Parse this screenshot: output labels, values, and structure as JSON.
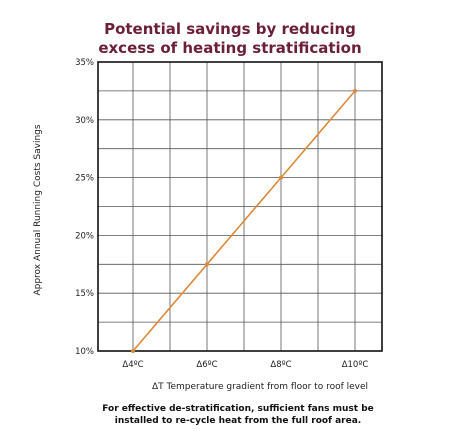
{
  "chart_data": {
    "type": "line",
    "title_lines": [
      "Potential savings by reducing",
      "excess of heating stratification"
    ],
    "xlabel": "ΔT Temperature gradient from floor to roof level",
    "ylabel": "Approx Annual Running Costs Savings",
    "categories": [
      "Δ4ºC",
      "Δ6ºC",
      "Δ8ºC",
      "Δ10ºC"
    ],
    "values": [
      10,
      17.5,
      25,
      32.5
    ],
    "ylim": [
      10,
      35
    ],
    "yticks": [
      10,
      15,
      20,
      25,
      30,
      35
    ],
    "ytick_labels": [
      "10%",
      "15%",
      "20%",
      "25%",
      "30%",
      "35%"
    ],
    "grid": true,
    "line_color": "#e0883a",
    "title_color": "#6b1f3a"
  },
  "footnote_lines": [
    "For effective de-stratification, sufficient fans must be",
    "installed to re-cycle heat from the full roof area."
  ]
}
